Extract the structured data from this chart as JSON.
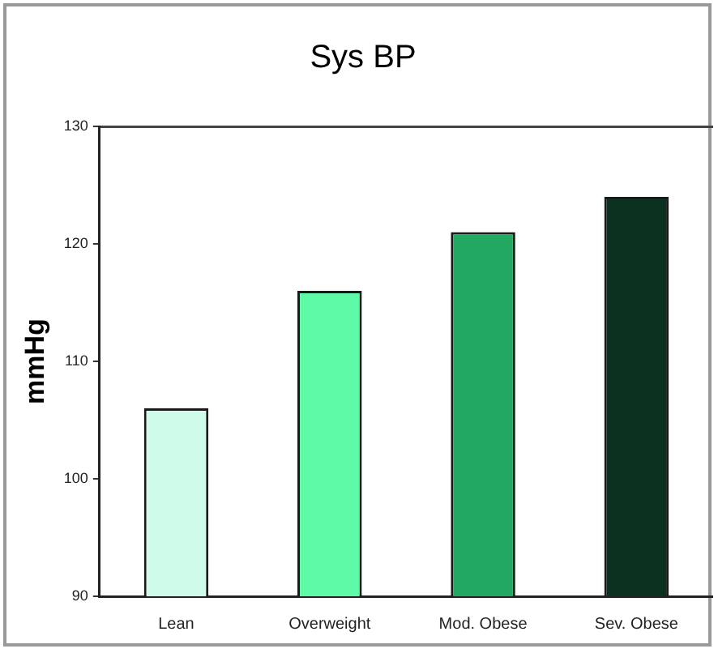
{
  "chart_data": {
    "type": "bar",
    "title": "Sys BP",
    "ylabel": "mmHg",
    "categories": [
      "Lean",
      "Overweight",
      "Mod. Obese",
      "Sev. Obese"
    ],
    "values": [
      106,
      116,
      121,
      124
    ],
    "colors": [
      "#cffcea",
      "#5ffaa8",
      "#22a860",
      "#0d3121"
    ],
    "ylim": [
      90,
      130
    ],
    "yticks": [
      90,
      100,
      110,
      120,
      130
    ],
    "grid": false,
    "legend": false
  }
}
